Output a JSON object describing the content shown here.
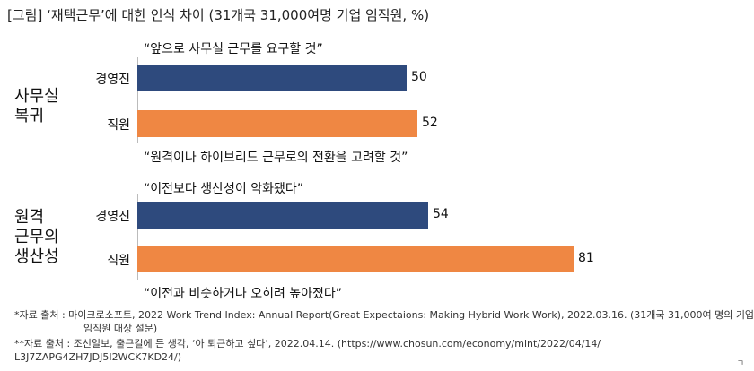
{
  "chart_data": {
    "type": "bar",
    "orientation": "horizontal",
    "title": "[그림] ‘재택근무’에 대한 인식 차이 (31개국 31,000여명 기업 임직원, %)",
    "groups": [
      {
        "label_lines": [
          "사무실",
          "복귀"
        ],
        "quote_top": "“앞으로 사무실 근무를 요구할 것”",
        "quote_bottom": "“원격이나 하이브리드 근무로의 전환을 고려할 것”",
        "bars": [
          {
            "category": "경영진",
            "value": 50,
            "value_label": "50",
            "color": "#2e4a7d"
          },
          {
            "category": "직원",
            "value": 52,
            "value_label": "52",
            "color": "#ef8743"
          }
        ]
      },
      {
        "label_lines": [
          "원격",
          "근무의",
          "생산성"
        ],
        "quote_top": "“이전보다 생산성이 악화됐다”",
        "quote_bottom": "“이전과 비슷하거나 오히려 높아졌다”",
        "bars": [
          {
            "category": "경영진",
            "value": 54,
            "value_label": "54",
            "color": "#2e4a7d"
          },
          {
            "category": "직원",
            "value": 81,
            "value_label": "81",
            "color": "#ef8743"
          }
        ]
      }
    ],
    "xlim": [
      0,
      100
    ],
    "grid": false,
    "legend": "none"
  },
  "footnotes": [
    "*자료 출처 : 마이크로소프트, 2022 Work Trend Index: Annual Report(Great Expectaions: Making Hybrid Work Work), 2022.03.16. (31개국 31,000여 명의 기업",
    "임직원 대상 설문)",
    "**자료 출처 : 조선일보, 출근길에 든 생각, ‘아 퇴근하고 싶다’, 2022.04.14. (https://www.chosun.com/economy/mint/2022/04/14/",
    "L3J7ZAPG4ZH7JDJ5I2WCK7KD24/)"
  ],
  "corner_mark": "ㄱ"
}
